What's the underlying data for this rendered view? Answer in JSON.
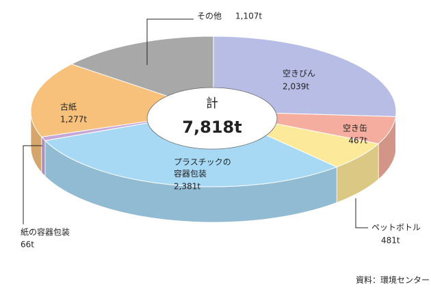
{
  "chart_data": {
    "type": "pie",
    "categories": [
      "空きびん",
      "空き缶",
      "ペットボトル",
      "プラスチックの容器包装",
      "紙の容器包装",
      "古紙",
      "その他"
    ],
    "values": [
      2039,
      467,
      481,
      2381,
      66,
      1277,
      1107
    ],
    "value_labels": [
      "2,039t",
      "467t",
      "481t",
      "2,381t",
      "66t",
      "1,277t",
      "1,107t"
    ],
    "colors": [
      "#b8bde6",
      "#f4ad9e",
      "#fde99a",
      "#a8d9f4",
      "#c7a6d8",
      "#f7c17c",
      "#a8a8a8"
    ],
    "total_label": "計",
    "total_value": 7818,
    "total_value_label": "7,818t",
    "source": "資料：環境センター"
  }
}
